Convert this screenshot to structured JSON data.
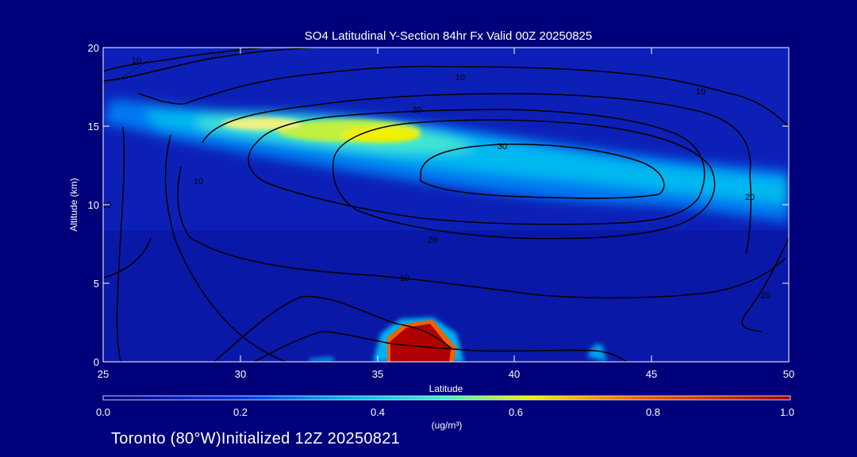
{
  "chart_data": {
    "type": "heatmap",
    "title": "SO4 Latitudinal Y-Section 84hr  Fx Valid 00Z 20250825",
    "xlabel": "Latitude",
    "ylabel": "Altitude (km)",
    "xlim": [
      25,
      50
    ],
    "ylim": [
      0,
      20
    ],
    "x_ticks": [
      "25",
      "30",
      "35",
      "40",
      "45",
      "50"
    ],
    "y_ticks": [
      "0",
      "5",
      "10",
      "15",
      "20"
    ],
    "colorbar": {
      "label": "(ug/m³)",
      "range": [
        0.0,
        1.0
      ],
      "tick_labels": [
        "0.0",
        "0.2",
        "0.4",
        "0.6",
        "0.8",
        "1.0"
      ]
    },
    "field_features": [
      {
        "name": "upper-tropospheric SO4 layer",
        "lat_range": [
          27,
          50
        ],
        "alt_range_km": [
          11,
          16.5
        ],
        "approx_value": 0.35
      },
      {
        "name": "peak aloft",
        "lat": 34.5,
        "alt_km": 14.5,
        "approx_value": 0.6
      },
      {
        "name": "near-surface plume",
        "lat_range": [
          35.5,
          37.8
        ],
        "alt_range_km": [
          0,
          2.8
        ],
        "approx_value": 1.0
      }
    ],
    "contour_labels": [
      "10",
      "10",
      "20",
      "30",
      "10",
      "20",
      "20",
      "10",
      "10",
      "20",
      "10"
    ]
  },
  "footer": {
    "location": "Toronto (80°W)",
    "initialized": "Initialized 12Z 20250821"
  }
}
